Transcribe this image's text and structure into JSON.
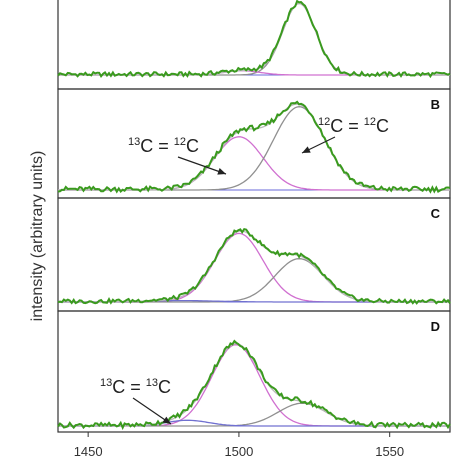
{
  "chart_data": {
    "type": "line",
    "ylabel": "intensity (arbitrary units)",
    "xlabel": "",
    "xlim": [
      1440,
      1570
    ],
    "x_ticks": [
      1450,
      1500,
      1550
    ],
    "x_tick_labels": [
      "1450",
      "1500",
      "1550"
    ],
    "colors": {
      "measured": "#3a9a1e",
      "fit_total": "#b9b9b9",
      "c13_c12": "#d070d0",
      "c12_c12": "#909090",
      "c13_c13": "#7070d0",
      "baseline": "#6a6ad8"
    },
    "panels": [
      {
        "letter": "",
        "components": [
          {
            "role": "c12_c12",
            "center": 1520,
            "width": 5.5,
            "amp": 1.0
          },
          {
            "role": "c13_c12",
            "center": 1501,
            "width": 6.0,
            "amp": 0.06
          }
        ],
        "annotations": []
      },
      {
        "letter": "B",
        "components": [
          {
            "role": "c13_c12",
            "center": 1500,
            "width": 8.0,
            "amp": 0.62
          },
          {
            "role": "c12_c12",
            "center": 1520,
            "width": 8.5,
            "amp": 0.97
          }
        ],
        "annotations": [
          {
            "prefix_sup": "13",
            "mid": "C = ",
            "mid_sup": "12",
            "suffix": "C"
          },
          {
            "prefix_sup": "12",
            "mid": "C = ",
            "mid_sup": "12",
            "suffix": "C"
          }
        ]
      },
      {
        "letter": "C",
        "components": [
          {
            "role": "c13_c12",
            "center": 1500,
            "width": 8.0,
            "amp": 0.95
          },
          {
            "role": "c12_c12",
            "center": 1520,
            "width": 8.0,
            "amp": 0.6
          },
          {
            "role": "c13_c13",
            "center": 1480,
            "width": 12.0,
            "amp": 0.02
          }
        ],
        "annotations": []
      },
      {
        "letter": "D",
        "components": [
          {
            "role": "c13_c12",
            "center": 1499,
            "width": 8.0,
            "amp": 1.0
          },
          {
            "role": "c12_c12",
            "center": 1521,
            "width": 8.0,
            "amp": 0.28
          },
          {
            "role": "c13_c13",
            "center": 1483,
            "width": 7.0,
            "amp": 0.07
          }
        ],
        "annotations": [
          {
            "prefix_sup": "13",
            "mid": "C = ",
            "mid_sup": "13",
            "suffix": "C"
          }
        ]
      }
    ]
  }
}
